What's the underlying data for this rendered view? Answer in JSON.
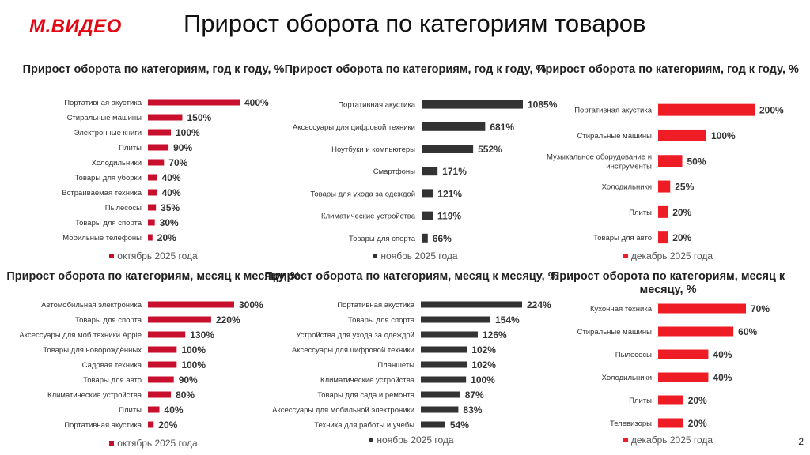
{
  "header": {
    "logo_text": "М.ВИДЕО",
    "title": "Прирост оборота по категориям товаров",
    "page_number": "2"
  },
  "colors": {
    "red": "#c8102e",
    "dark": "#333333",
    "bright_red": "#ee1c25"
  },
  "chart_data": [
    {
      "type": "bar",
      "orientation": "horizontal",
      "title": "Прирост оборота по категориям, год к году, %",
      "legend": "октябрь 2025 года",
      "legend_placement": "bottom",
      "color": "#c8102e",
      "categories": [
        "Портативная акустика",
        "Стиральные машины",
        "Электронные книги",
        "Плиты",
        "Холодильники",
        "Товары для уборки",
        "Встраиваемая техника",
        "Пылесосы",
        "Товары для спорта",
        "Мобильные телефоны"
      ],
      "values": [
        400,
        150,
        100,
        90,
        70,
        40,
        40,
        35,
        30,
        20
      ],
      "value_labels": [
        "400%",
        "150%",
        "100%",
        "90%",
        "70%",
        "40%",
        "40%",
        "35%",
        "30%",
        "20%"
      ],
      "xlim": [
        0,
        400
      ],
      "grid": false
    },
    {
      "type": "bar",
      "orientation": "horizontal",
      "title": "Прирост оборота по категориям, год к году, %",
      "legend": "ноябрь 2025 года",
      "legend_placement": "bottom",
      "color": "#333333",
      "categories": [
        "Портативная акустика",
        "Аксессуары для цифровой техники",
        "Ноутбуки и компьютеры",
        "Смартфоны",
        "Товары для ухода за одеждой",
        "Климатические устройства",
        "Товары для спорта"
      ],
      "values": [
        1085,
        681,
        552,
        171,
        121,
        119,
        66
      ],
      "value_labels": [
        "1085%",
        "681%",
        "552%",
        "171%",
        "121%",
        "119%",
        "66%"
      ],
      "xlim": [
        0,
        1085
      ],
      "grid": false
    },
    {
      "type": "bar",
      "orientation": "horizontal",
      "title": "Прирост оборота по категориям, год к году, %",
      "legend": "декабрь 2025 года",
      "legend_placement": "bottom",
      "color": "#ee1c25",
      "categories": [
        "Портативная акустика",
        "Стиральные машины",
        "Музыкальное оборудование и инструменты",
        "Холодильники",
        "Плиты",
        "Товары для авто"
      ],
      "values": [
        200,
        100,
        50,
        25,
        20,
        20
      ],
      "value_labels": [
        "200%",
        "100%",
        "50%",
        "25%",
        "20%",
        "20%"
      ],
      "xlim": [
        0,
        200
      ],
      "grid": false
    },
    {
      "type": "bar",
      "orientation": "horizontal",
      "title": "Прирост оборота по категориям, месяц к месяцу, %",
      "legend": "октябрь 2025 года",
      "legend_placement": "bottom",
      "color": "#c8102e",
      "categories": [
        "Автомобильная электроника",
        "Товары для спорта",
        "Аксессуары для моб.техники Apple",
        "Товары для новорождённых",
        "Садовая техника",
        "Товары для авто",
        "Климатические устройства",
        "Плиты",
        "Портативная акустика"
      ],
      "values": [
        300,
        220,
        130,
        100,
        100,
        90,
        80,
        40,
        20
      ],
      "value_labels": [
        "300%",
        "220%",
        "130%",
        "100%",
        "100%",
        "90%",
        "80%",
        "40%",
        "20%"
      ],
      "xlim": [
        0,
        300
      ],
      "grid": false
    },
    {
      "type": "bar",
      "orientation": "horizontal",
      "title": "Прирост оборота по категориям, месяц к месяцу, %",
      "legend": "ноябрь 2025 года",
      "legend_placement": "bottom",
      "color": "#333333",
      "categories": [
        "Портативная акустика",
        "Товары для спорта",
        "Устройства для ухода за одеждой",
        "Аксессуары для цифровой техники",
        "Планшеты",
        "Климатические устройства",
        "Товары для сада и ремонта",
        "Аксессуары для мобильной электроники",
        "Техника для работы и учебы"
      ],
      "values": [
        224,
        154,
        126,
        102,
        102,
        100,
        87,
        83,
        54
      ],
      "value_labels": [
        "224%",
        "154%",
        "126%",
        "102%",
        "102%",
        "100%",
        "87%",
        "83%",
        "54%"
      ],
      "xlim": [
        0,
        224
      ],
      "grid": false
    },
    {
      "type": "bar",
      "orientation": "horizontal",
      "title": "Прирост оборота по категориям, месяц к месяцу, %",
      "legend": "декабрь 2025 года",
      "legend_placement": "bottom",
      "color": "#ee1c25",
      "categories": [
        "Кухонная техника",
        "Стиральные машины",
        "Пылесосы",
        "Холодильники",
        "Плиты",
        "Телевизоры"
      ],
      "values": [
        70,
        60,
        40,
        40,
        20,
        20
      ],
      "value_labels": [
        "70%",
        "60%",
        "40%",
        "40%",
        "20%",
        "20%"
      ],
      "xlim": [
        0,
        70
      ],
      "grid": false
    }
  ]
}
